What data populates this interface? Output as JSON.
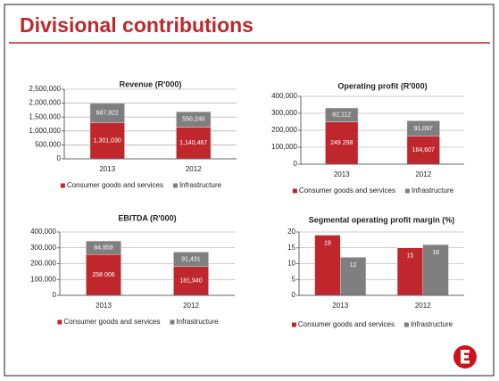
{
  "title": "Divisional contributions",
  "chart_data": [
    {
      "type": "stacked_bar",
      "title": "Revenue (R'000)",
      "categories": [
        "2013",
        "2012"
      ],
      "series": [
        {
          "name": "Consumer goods and services",
          "color": "#c0272d",
          "values": [
            1301030,
            1140467
          ],
          "value_labels": [
            "1,301,030",
            "1,140,467"
          ]
        },
        {
          "name": "Infrastructure",
          "color": "#7f7f7f",
          "values": [
            687922,
            550240
          ],
          "value_labels": [
            "687,922",
            "550,240"
          ]
        }
      ],
      "ylim": [
        0,
        2500000
      ],
      "yticks": [
        0,
        {
          "value": 500000,
          "label": "500,000"
        },
        {
          "value": 1000000,
          "label": "1,000,000"
        },
        {
          "value": 1500000,
          "label": "1,500,000"
        },
        {
          "value": 2000000,
          "label": "2,000,000"
        },
        {
          "value": 2500000,
          "label": "2,500,000"
        }
      ],
      "grid": true,
      "legend": "bottom"
    },
    {
      "type": "stacked_bar",
      "title": "Operating profit (R'000)",
      "categories": [
        "2013",
        "2012"
      ],
      "series": [
        {
          "name": "Consumer goods and services",
          "color": "#c0272d",
          "values": [
            249298,
            164607
          ],
          "value_labels": [
            "249 298",
            "164,607"
          ]
        },
        {
          "name": "Infrastructure",
          "color": "#7f7f7f",
          "values": [
            82112,
            91097
          ],
          "value_labels": [
            "82,112",
            "91,097"
          ]
        }
      ],
      "ylim": [
        0,
        400000
      ],
      "yticks": [
        0,
        {
          "value": 100000,
          "label": "100,000"
        },
        {
          "value": 200000,
          "label": "200,000"
        },
        {
          "value": 300000,
          "label": "300,000"
        },
        {
          "value": 400000,
          "label": "400,000"
        }
      ],
      "grid": true,
      "legend": "bottom"
    },
    {
      "type": "stacked_bar",
      "title": "EBITDA (R'000)",
      "categories": [
        "2013",
        "2012"
      ],
      "series": [
        {
          "name": "Consumer goods and services",
          "color": "#c0272d",
          "values": [
            258006,
            181940
          ],
          "value_labels": [
            "258 006",
            "181,940"
          ]
        },
        {
          "name": "Infrastructure",
          "color": "#7f7f7f",
          "values": [
            84959,
            91431
          ],
          "value_labels": [
            "84,959",
            "91,431"
          ]
        }
      ],
      "ylim": [
        0,
        400000
      ],
      "yticks": [
        0,
        {
          "value": 100000,
          "label": "100,000"
        },
        {
          "value": 200000,
          "label": "200,000"
        },
        {
          "value": 300000,
          "label": "300,000"
        },
        {
          "value": 400000,
          "label": "400,000"
        }
      ],
      "grid": true,
      "legend": "bottom"
    },
    {
      "type": "bar",
      "title": "Segmental operating profit margin (%)",
      "categories": [
        "2013",
        "2012"
      ],
      "series": [
        {
          "name": "Consumer goods and services",
          "color": "#c0272d",
          "values": [
            19,
            15
          ]
        },
        {
          "name": "Infrastructure",
          "color": "#7f7f7f",
          "values": [
            12,
            16
          ]
        }
      ],
      "ylim": [
        0,
        20
      ],
      "yticks": [
        0,
        5,
        10,
        15,
        20
      ],
      "grid": true,
      "legend": "bottom"
    }
  ]
}
